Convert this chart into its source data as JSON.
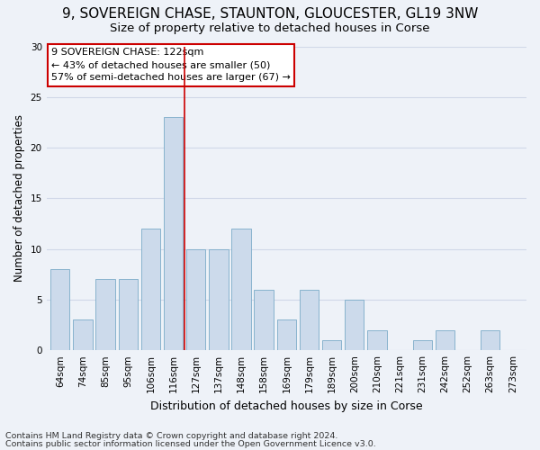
{
  "title": "9, SOVEREIGN CHASE, STAUNTON, GLOUCESTER, GL19 3NW",
  "subtitle": "Size of property relative to detached houses in Corse",
  "xlabel": "Distribution of detached houses by size in Corse",
  "ylabel": "Number of detached properties",
  "footer_line1": "Contains HM Land Registry data © Crown copyright and database right 2024.",
  "footer_line2": "Contains public sector information licensed under the Open Government Licence v3.0.",
  "bar_labels": [
    "64sqm",
    "74sqm",
    "85sqm",
    "95sqm",
    "106sqm",
    "116sqm",
    "127sqm",
    "137sqm",
    "148sqm",
    "158sqm",
    "169sqm",
    "179sqm",
    "189sqm",
    "200sqm",
    "210sqm",
    "221sqm",
    "231sqm",
    "242sqm",
    "252sqm",
    "263sqm",
    "273sqm"
  ],
  "bar_values": [
    8,
    3,
    7,
    7,
    12,
    23,
    10,
    10,
    12,
    6,
    3,
    6,
    1,
    5,
    2,
    0,
    1,
    2,
    0,
    2,
    0
  ],
  "bar_color": "#ccdaeb",
  "bar_edge_color": "#7aabc8",
  "grid_color": "#d0d8e8",
  "background_color": "#eef2f8",
  "annotation_line1": "9 SOVEREIGN CHASE: 122sqm",
  "annotation_line2": "← 43% of detached houses are smaller (50)",
  "annotation_line3": "57% of semi-detached houses are larger (67) →",
  "annotation_box_color": "#ffffff",
  "annotation_box_edge": "#cc0000",
  "ref_line_x": 5.5,
  "ref_line_color": "#cc0000",
  "ylim": [
    0,
    30
  ],
  "yticks": [
    0,
    5,
    10,
    15,
    20,
    25,
    30
  ],
  "title_fontsize": 11,
  "subtitle_fontsize": 9.5,
  "xlabel_fontsize": 9,
  "ylabel_fontsize": 8.5,
  "tick_fontsize": 7.5,
  "annotation_fontsize": 8,
  "footer_fontsize": 6.8
}
